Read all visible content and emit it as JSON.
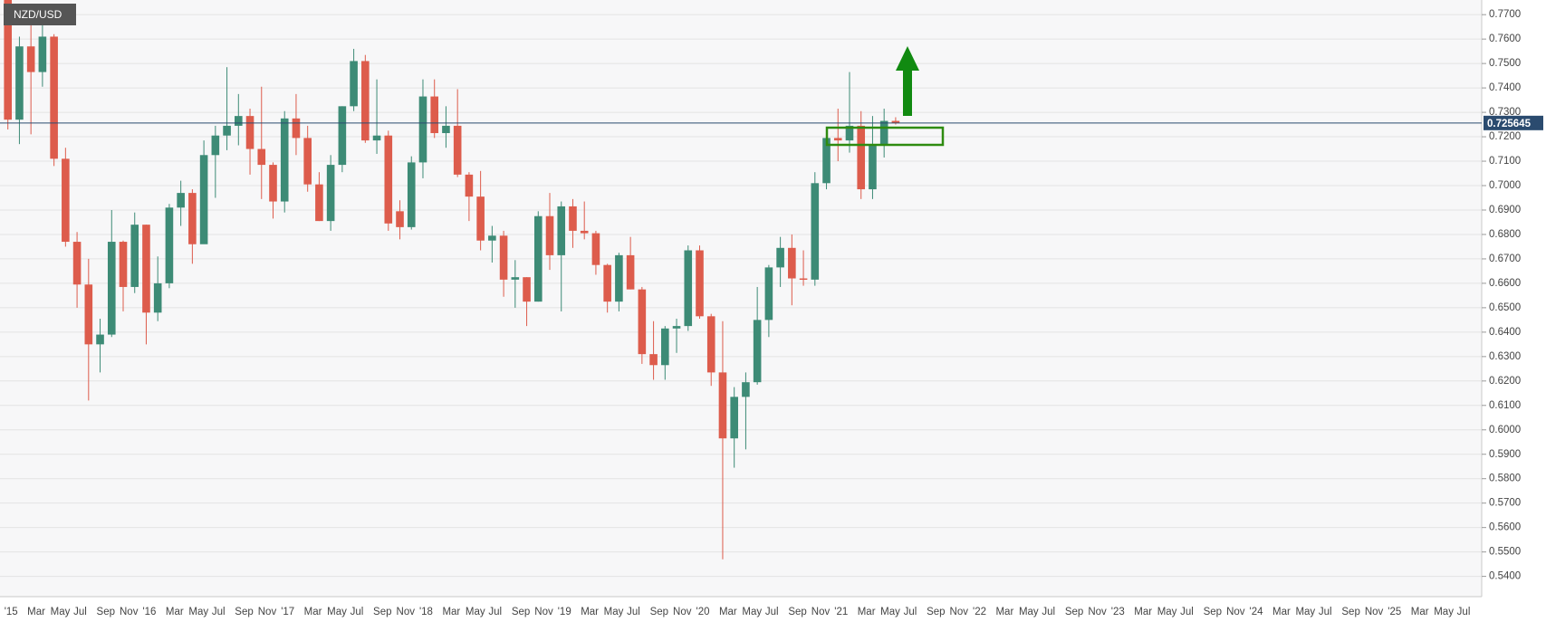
{
  "chart_data": {
    "type": "candlestick",
    "title": "NZD/USD",
    "categories": [
      "'15",
      null,
      "Mar",
      null,
      "May",
      null,
      "Jul",
      null,
      "Sep",
      null,
      "Nov",
      null,
      "'16",
      null,
      "Mar",
      null,
      "May",
      null,
      "Jul",
      null,
      "Sep",
      null,
      "Nov",
      null,
      "'17",
      null,
      "Mar",
      null,
      "May",
      null,
      "Jul",
      null,
      "Sep",
      null,
      "Nov",
      null,
      "'18",
      null,
      "Mar",
      null,
      "May",
      null,
      "Jul",
      null,
      "Sep",
      null,
      "Nov",
      null,
      "'19",
      null,
      "Mar",
      null,
      "May",
      null,
      "Jul",
      null,
      "Sep",
      null,
      "Nov",
      null,
      "'20",
      null,
      "Mar",
      null,
      "May",
      null,
      "Jul",
      null,
      "Sep",
      null,
      "Nov",
      null,
      "'21",
      null,
      "Mar",
      null,
      "May",
      null,
      "Jul",
      null,
      "Sep",
      null,
      "Nov",
      null,
      "'22",
      null,
      "Mar",
      null,
      "May",
      null,
      "Jul",
      null,
      "Sep",
      null,
      "Nov",
      null,
      "'23",
      null,
      "Mar",
      null,
      "May",
      null,
      "Jul",
      null,
      "Sep",
      null,
      "Nov",
      null,
      "'24",
      null,
      "Mar",
      null,
      "May",
      null,
      "Jul",
      null,
      "Sep",
      null,
      "Nov",
      null,
      "'25",
      null,
      "Mar",
      null,
      "May",
      null,
      "Jul"
    ],
    "open": [
      0.778,
      0.727,
      0.757,
      0.7465,
      0.761,
      0.711,
      0.677,
      0.6595,
      0.635,
      0.639,
      0.677,
      0.6585,
      0.684,
      0.648,
      0.66,
      0.691,
      0.697,
      0.676,
      0.7125,
      0.7205,
      0.7245,
      0.7285,
      0.715,
      0.7085,
      0.6935,
      0.7275,
      0.7195,
      0.7005,
      0.6855,
      0.7085,
      0.7325,
      0.751,
      0.7185,
      0.7205,
      0.6895,
      0.683,
      0.7095,
      0.7365,
      0.7215,
      0.7245,
      0.7045,
      0.6955,
      0.6775,
      0.6795,
      0.6615,
      0.6625,
      0.6525,
      0.6875,
      0.6715,
      0.6915,
      0.6815,
      0.6805,
      0.6675,
      0.6525,
      0.6715,
      0.6575,
      0.631,
      0.6265,
      0.6415,
      0.6425,
      0.6735,
      0.6465,
      0.6235,
      0.5965,
      0.6135,
      0.6195,
      0.645,
      0.6665,
      0.6745,
      0.662,
      0.6615,
      0.701,
      0.7195,
      0.7185,
      0.7245,
      0.6985,
      0.717,
      0.7265,
      null,
      null,
      null,
      null,
      null,
      null,
      null,
      null,
      null,
      null,
      null,
      null,
      null,
      null,
      null,
      null,
      null,
      null,
      null,
      null,
      null,
      null,
      null,
      null,
      null,
      null,
      null,
      null,
      null,
      null,
      null,
      null,
      null,
      null,
      null,
      null,
      null,
      null,
      null,
      null,
      null,
      null,
      null,
      null,
      null,
      null,
      null,
      null,
      null
    ],
    "high": [
      0.78,
      0.761,
      0.767,
      0.7745,
      0.762,
      0.7155,
      0.681,
      0.67,
      0.6455,
      0.69,
      0.6775,
      0.689,
      0.684,
      0.671,
      0.6925,
      0.702,
      0.6985,
      0.7185,
      0.7245,
      0.7485,
      0.7375,
      0.7315,
      0.7405,
      0.7095,
      0.7305,
      0.7375,
      0.7245,
      0.7055,
      0.7125,
      0.7325,
      0.756,
      0.7535,
      0.7435,
      0.7225,
      0.694,
      0.712,
      0.7435,
      0.7435,
      0.7325,
      0.7395,
      0.7055,
      0.706,
      0.6835,
      0.6815,
      0.6695,
      0.6625,
      0.6895,
      0.697,
      0.6935,
      0.6945,
      0.6935,
      0.6815,
      0.668,
      0.6725,
      0.679,
      0.6585,
      0.6445,
      0.6425,
      0.6455,
      0.6755,
      0.6755,
      0.6475,
      0.6445,
      0.6175,
      0.6235,
      0.6585,
      0.6675,
      0.679,
      0.68,
      0.6735,
      0.7055,
      0.7215,
      0.7315,
      0.7465,
      0.7305,
      0.7285,
      0.7315,
      0.728,
      null,
      null,
      null,
      null,
      null,
      null,
      null,
      null,
      null,
      null,
      null,
      null,
      null,
      null,
      null,
      null,
      null,
      null,
      null,
      null,
      null,
      null,
      null,
      null,
      null,
      null,
      null,
      null,
      null,
      null,
      null,
      null,
      null,
      null,
      null,
      null,
      null,
      null,
      null,
      null,
      null,
      null,
      null,
      null,
      null,
      null,
      null,
      null,
      null
    ],
    "low": [
      0.723,
      0.717,
      0.721,
      0.7405,
      0.708,
      0.675,
      0.65,
      0.612,
      0.6235,
      0.638,
      0.6485,
      0.656,
      0.635,
      0.6445,
      0.658,
      0.6835,
      0.668,
      0.6765,
      0.695,
      0.7145,
      0.7165,
      0.7045,
      0.6945,
      0.6865,
      0.689,
      0.7125,
      0.6975,
      0.6855,
      0.6815,
      0.7055,
      0.7305,
      0.7175,
      0.713,
      0.6815,
      0.678,
      0.682,
      0.703,
      0.7195,
      0.7155,
      0.7035,
      0.6855,
      0.6735,
      0.6685,
      0.6545,
      0.65,
      0.6425,
      0.6525,
      0.6655,
      0.6485,
      0.6745,
      0.678,
      0.6635,
      0.648,
      0.6485,
      0.6575,
      0.627,
      0.6205,
      0.6205,
      0.6315,
      0.6405,
      0.6455,
      0.618,
      0.547,
      0.5845,
      0.592,
      0.6185,
      0.638,
      0.6585,
      0.651,
      0.659,
      0.659,
      0.6985,
      0.71,
      0.7135,
      0.6945,
      0.6945,
      0.7115,
      0.725,
      null,
      null,
      null,
      null,
      null,
      null,
      null,
      null,
      null,
      null,
      null,
      null,
      null,
      null,
      null,
      null,
      null,
      null,
      null,
      null,
      null,
      null,
      null,
      null,
      null,
      null,
      null,
      null,
      null,
      null,
      null,
      null,
      null,
      null,
      null,
      null,
      null,
      null,
      null,
      null,
      null,
      null,
      null,
      null,
      null,
      null,
      null,
      null,
      null
    ],
    "close": [
      0.727,
      0.757,
      0.7465,
      0.761,
      0.711,
      0.677,
      0.6595,
      0.635,
      0.639,
      0.677,
      0.6585,
      0.684,
      0.648,
      0.66,
      0.691,
      0.697,
      0.676,
      0.7125,
      0.7205,
      0.7245,
      0.7285,
      0.715,
      0.7085,
      0.6935,
      0.7275,
      0.7195,
      0.7005,
      0.6855,
      0.7085,
      0.7325,
      0.751,
      0.7185,
      0.7205,
      0.6845,
      0.683,
      0.7095,
      0.7365,
      0.7215,
      0.7245,
      0.7045,
      0.6955,
      0.6775,
      0.6795,
      0.6615,
      0.6625,
      0.6525,
      0.6875,
      0.6715,
      0.6915,
      0.6815,
      0.6805,
      0.6675,
      0.6525,
      0.6715,
      0.6575,
      0.631,
      0.6265,
      0.6415,
      0.6425,
      0.6735,
      0.6465,
      0.6235,
      0.5965,
      0.6135,
      0.6195,
      0.645,
      0.6665,
      0.6745,
      0.662,
      0.6615,
      0.701,
      0.7195,
      0.7185,
      0.7245,
      0.6985,
      0.717,
      0.7265,
      0.72565,
      null,
      null,
      null,
      null,
      null,
      null,
      null,
      null,
      null,
      null,
      null,
      null,
      null,
      null,
      null,
      null,
      null,
      null,
      null,
      null,
      null,
      null,
      null,
      null,
      null,
      null,
      null,
      null,
      null,
      null,
      null,
      null,
      null,
      null,
      null,
      null,
      null,
      null,
      null,
      null,
      null,
      null,
      null,
      null,
      null,
      null,
      null,
      null,
      null
    ],
    "up_color": "#3d8b76",
    "down_color": "#dd5c4c",
    "last_price": 0.725645,
    "last_price_color": "#2b4b6f",
    "ylim": [
      0.5317,
      0.776
    ],
    "yticks": [
      {
        "value": 0.54,
        "label": "0.5400"
      },
      {
        "value": 0.55,
        "label": "0.5500"
      },
      {
        "value": 0.56,
        "label": "0.5600"
      },
      {
        "value": 0.57,
        "label": "0.5700"
      },
      {
        "value": 0.58,
        "label": "0.5800"
      },
      {
        "value": 0.59,
        "label": "0.5900"
      },
      {
        "value": 0.6,
        "label": "0.6000"
      },
      {
        "value": 0.61,
        "label": "0.6100"
      },
      {
        "value": 0.62,
        "label": "0.6200"
      },
      {
        "value": 0.63,
        "label": "0.6300"
      },
      {
        "value": 0.64,
        "label": "0.6400"
      },
      {
        "value": 0.65,
        "label": "0.6500"
      },
      {
        "value": 0.66,
        "label": "0.6600"
      },
      {
        "value": 0.67,
        "label": "0.6700"
      },
      {
        "value": 0.68,
        "label": "0.6800"
      },
      {
        "value": 0.69,
        "label": "0.6900"
      },
      {
        "value": 0.7,
        "label": "0.7000"
      },
      {
        "value": 0.71,
        "label": "0.7100"
      },
      {
        "value": 0.72,
        "label": "0.7200"
      },
      {
        "value": 0.73,
        "label": "0.7300"
      },
      {
        "value": 0.74,
        "label": "0.7400"
      },
      {
        "value": 0.75,
        "label": "0.7500"
      },
      {
        "value": 0.76,
        "label": "0.7600"
      },
      {
        "value": 0.77,
        "label": "0.7700"
      }
    ],
    "grid": true
  }
}
